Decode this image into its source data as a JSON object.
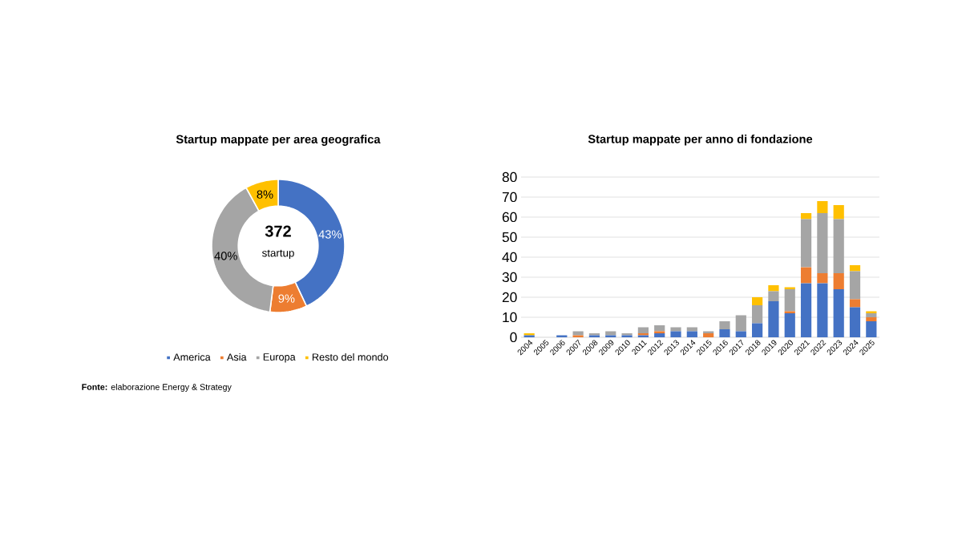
{
  "chart_data": [
    {
      "type": "donut",
      "title": "Startup mappate per area geografica",
      "categories": [
        "America",
        "Asia",
        "Europa",
        "Resto del mondo"
      ],
      "values": [
        43,
        9,
        40,
        8
      ],
      "colors": [
        "#4472c4",
        "#ed7d31",
        "#a5a5a5",
        "#ffc000"
      ],
      "value_labels": [
        "43%",
        "9%",
        "40%",
        "8%"
      ],
      "legend": "bottom",
      "annotations": [
        "372",
        "startup",
        "**Fonte:** elaborazione Energy & Strategy"
      ]
    },
    {
      "type": "bar",
      "title": "Startup mappate per anno di fondazione",
      "stacked": true,
      "categories": [
        "2004",
        "2005",
        "2006",
        "2007",
        "2008",
        "2009",
        "2010",
        "2011",
        "2012",
        "2013",
        "2014",
        "2015",
        "2016",
        "2017",
        "2018",
        "2019",
        "2020",
        "2021",
        "2022",
        "2023",
        "2024",
        "2025"
      ],
      "series": [
        {
          "color": "#4472c4",
          "values": [
            1,
            0,
            1,
            0,
            1,
            1,
            1,
            1,
            2,
            3,
            3,
            0,
            4,
            3,
            7,
            18,
            12,
            27,
            27,
            24,
            15,
            8
          ]
        },
        {
          "color": "#ed7d31",
          "values": [
            0,
            0,
            0,
            1,
            0,
            0,
            0,
            1,
            1,
            0,
            0,
            2,
            0,
            0,
            0,
            0,
            1,
            8,
            5,
            8,
            4,
            2
          ]
        },
        {
          "color": "#a5a5a5",
          "values": [
            0,
            0,
            0,
            2,
            1,
            2,
            1,
            3,
            3,
            2,
            2,
            1,
            4,
            8,
            9,
            5,
            11,
            24,
            30,
            27,
            14,
            2
          ]
        },
        {
          "color": "#ffc000",
          "values": [
            1,
            0,
            0,
            0,
            0,
            0,
            0,
            0,
            0,
            0,
            0,
            0,
            0,
            0,
            4,
            3,
            1,
            3,
            6,
            7,
            3,
            1
          ]
        }
      ],
      "ylim": [
        0,
        80
      ],
      "yticks": [
        0,
        10,
        20,
        30,
        40,
        50,
        60,
        70,
        80
      ],
      "grid": "y"
    }
  ]
}
